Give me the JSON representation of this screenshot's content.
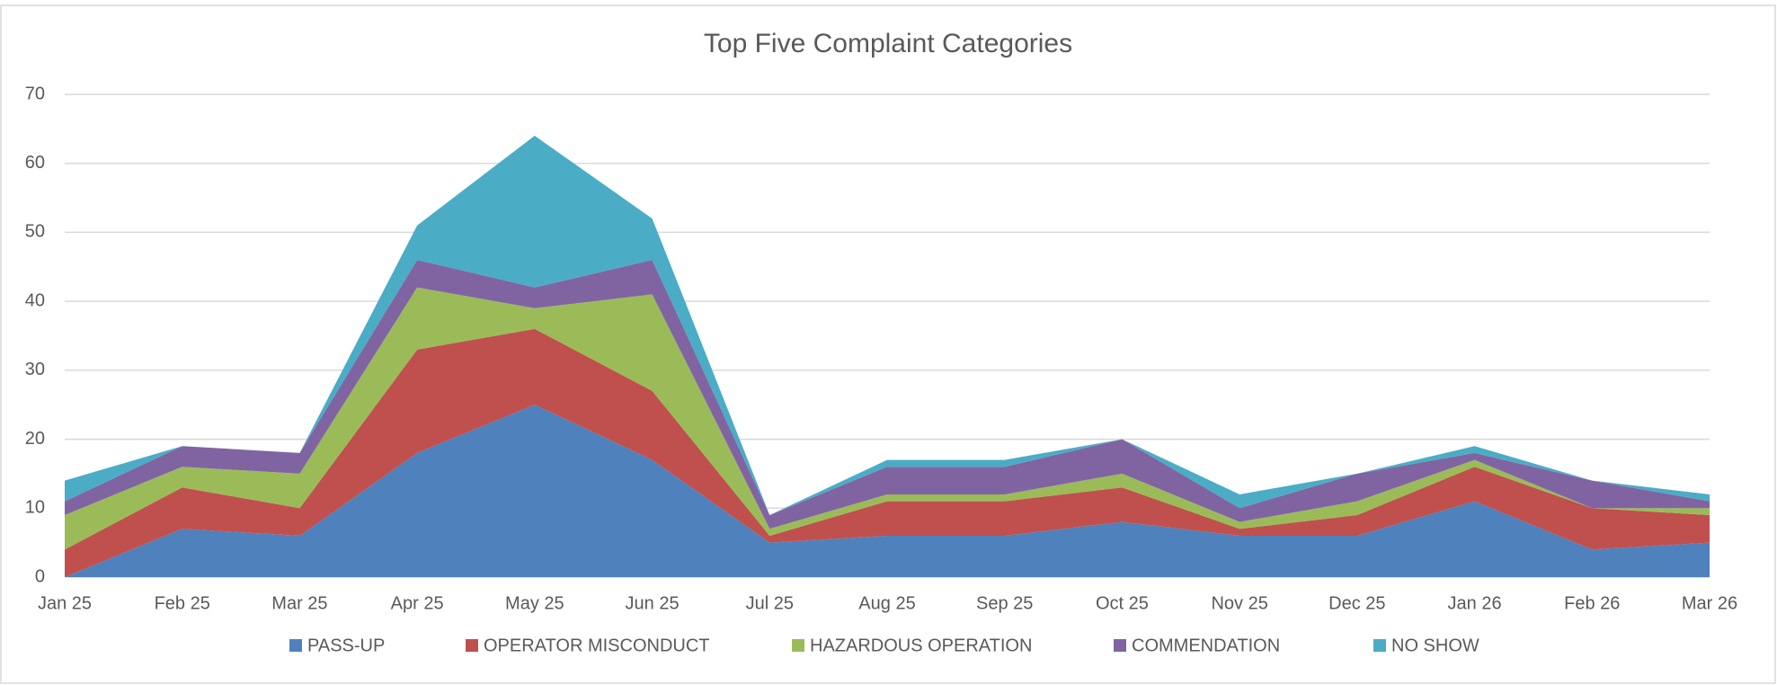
{
  "chart_data": {
    "type": "stacked_area",
    "title": "Top Five Complaint Categories",
    "categories": [
      "Jan 25",
      "Feb 25",
      "Mar 25",
      "Apr 25",
      "May 25",
      "Jun 25",
      "Jul 25",
      "Aug 25",
      "Sep 25",
      "Oct 25",
      "Nov 25",
      "Dec 25",
      "Jan 26",
      "Feb 26",
      "Mar 26"
    ],
    "series": [
      {
        "name": "PASS-UP",
        "color": "#4f81bd",
        "values": [
          0,
          7,
          6,
          18,
          25,
          17,
          5,
          6,
          6,
          8,
          6,
          6,
          11,
          4,
          5
        ]
      },
      {
        "name": "OPERATOR MISCONDUCT",
        "color": "#c0504d",
        "values": [
          4,
          6,
          4,
          15,
          11,
          10,
          1,
          5,
          5,
          5,
          1,
          3,
          5,
          6,
          4
        ]
      },
      {
        "name": "HAZARDOUS OPERATION",
        "color": "#9bbb59",
        "values": [
          5,
          3,
          5,
          9,
          3,
          14,
          1,
          1,
          1,
          2,
          1,
          2,
          1,
          0,
          1
        ]
      },
      {
        "name": "COMMENDATION",
        "color": "#8064a2",
        "values": [
          2,
          3,
          3,
          4,
          3,
          5,
          2,
          4,
          4,
          5,
          2,
          4,
          1,
          4,
          1
        ]
      },
      {
        "name": "NO SHOW",
        "color": "#4bacc6",
        "values": [
          3,
          0,
          0,
          5,
          22,
          6,
          0,
          1,
          1,
          0,
          2,
          0,
          1,
          0,
          1
        ]
      }
    ],
    "ylim": [
      0,
      70
    ],
    "yticks": [
      0,
      10,
      20,
      30,
      40,
      50,
      60,
      70
    ],
    "grid": true,
    "legend": "bottom"
  }
}
